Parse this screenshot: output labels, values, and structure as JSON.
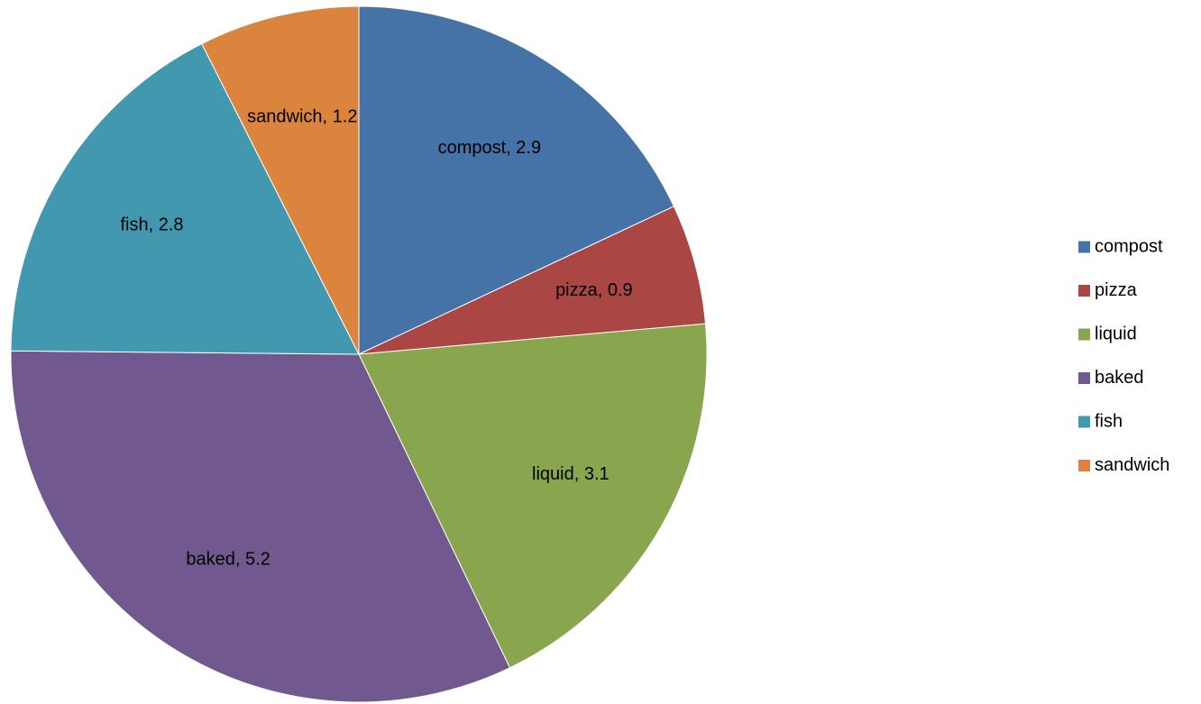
{
  "chart_data": {
    "type": "pie",
    "title": "",
    "categories": [
      "compost",
      "pizza",
      "liquid",
      "baked",
      "fish",
      "sandwich"
    ],
    "values": [
      2.9,
      0.9,
      3.1,
      5.2,
      2.8,
      1.2
    ],
    "data_labels": [
      "compost, 2.9",
      "pizza, 0.9",
      "liquid, 3.1",
      "baked, 5.2",
      "fish, 2.8",
      "sandwich, 1.2"
    ],
    "colors": [
      "#4572A7",
      "#AA4643",
      "#89A54E",
      "#71588F",
      "#4198AF",
      "#DB843D"
    ],
    "start_angle": "12 o'clock",
    "direction": "clockwise",
    "legend_position": "right"
  }
}
